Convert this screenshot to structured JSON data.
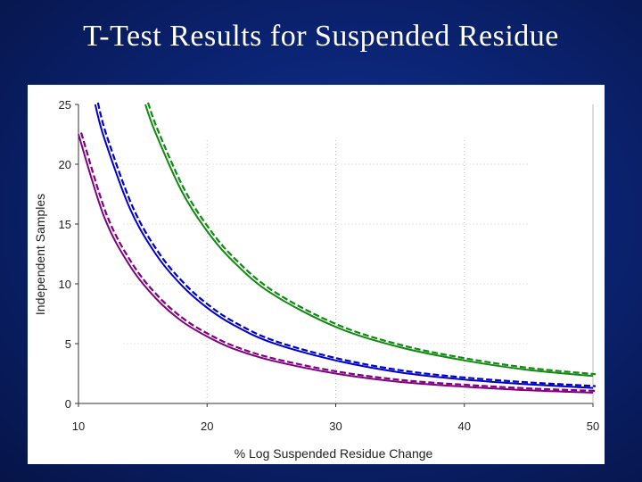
{
  "slide": {
    "title": "T-Test Results for Suspended Residue"
  },
  "chart_data": {
    "type": "line",
    "title": "",
    "xlabel": "% Log Suspended Residue Change",
    "ylabel": "Independent Samples",
    "xlim": [
      10,
      50
    ],
    "ylim": [
      0,
      25
    ],
    "x_ticks": [
      10,
      20,
      30,
      40,
      50
    ],
    "y_ticks": [
      0,
      5,
      10,
      15,
      20,
      25
    ],
    "grid": "dotted",
    "legend": "none",
    "series": [
      {
        "color": "#800080",
        "x": [
          10,
          12,
          14,
          16,
          18,
          20,
          22,
          25,
          30,
          35,
          40,
          45,
          50
        ],
        "y": [
          22.5,
          15.6,
          11.5,
          8.8,
          6.9,
          5.6,
          4.6,
          3.6,
          2.5,
          1.8,
          1.4,
          1.1,
          0.9
        ]
      },
      {
        "color": "#0000cc",
        "x": [
          11.3,
          12,
          14,
          16,
          18,
          20,
          22,
          25,
          30,
          35,
          40,
          45,
          50
        ],
        "y": [
          25,
          22.2,
          16.3,
          12.5,
          9.9,
          8.0,
          6.6,
          5.1,
          3.6,
          2.6,
          2.0,
          1.6,
          1.3
        ]
      },
      {
        "color": "#108a10",
        "x": [
          15.2,
          16,
          18,
          20,
          22,
          25,
          30,
          35,
          40,
          45,
          50
        ],
        "y": [
          25,
          22.6,
          17.8,
          14.4,
          11.9,
          9.2,
          6.4,
          4.7,
          3.6,
          2.8,
          2.3
        ]
      }
    ]
  }
}
